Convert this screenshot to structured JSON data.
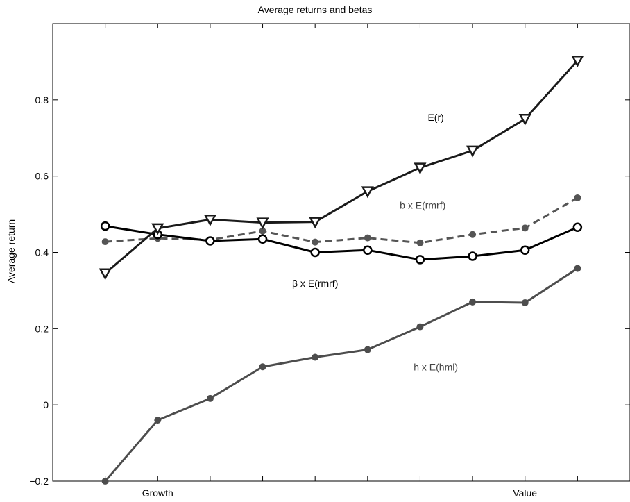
{
  "chart_data": {
    "type": "line",
    "title": "Average returns and betas",
    "xlabel": "",
    "ylabel": "Average return",
    "x": [
      1,
      2,
      3,
      4,
      5,
      6,
      7,
      8,
      9,
      10
    ],
    "xlim": [
      0,
      11
    ],
    "ylim": [
      -0.2,
      1.0
    ],
    "xticks": [
      {
        "x": 1,
        "label": ""
      },
      {
        "x": 2,
        "label": "Growth"
      },
      {
        "x": 3,
        "label": ""
      },
      {
        "x": 4,
        "label": ""
      },
      {
        "x": 5,
        "label": ""
      },
      {
        "x": 6,
        "label": ""
      },
      {
        "x": 7,
        "label": ""
      },
      {
        "x": 8,
        "label": ""
      },
      {
        "x": 9,
        "label": "Value"
      },
      {
        "x": 10,
        "label": ""
      }
    ],
    "yticks": [
      {
        "y": -0.2,
        "label": "−0.2"
      },
      {
        "y": 0,
        "label": "0"
      },
      {
        "y": 0.2,
        "label": "0.2"
      },
      {
        "y": 0.4,
        "label": "0.4"
      },
      {
        "y": 0.6,
        "label": "0.6"
      },
      {
        "y": 0.8,
        "label": "0.8"
      }
    ],
    "grid": false,
    "series": [
      {
        "key": "er",
        "name": "E(r)",
        "values": [
          0.345,
          0.463,
          0.486,
          0.478,
          0.48,
          0.56,
          0.622,
          0.667,
          0.75,
          0.903
        ],
        "color": "#1a1a1a",
        "dashed": false,
        "marker": "triangle-down",
        "label_x": 7.3,
        "label_y": 0.745
      },
      {
        "key": "b",
        "name": "b x E(rmrf)",
        "values": [
          0.428,
          0.437,
          0.433,
          0.456,
          0.427,
          0.438,
          0.425,
          0.447,
          0.464,
          0.543
        ],
        "color": "#555555",
        "dashed": true,
        "marker": "dot",
        "label_x": 7.05,
        "label_y": 0.515
      },
      {
        "key": "beta",
        "name": "β x E(rmrf)",
        "values": [
          0.469,
          0.447,
          0.43,
          0.435,
          0.4,
          0.406,
          0.381,
          0.39,
          0.406,
          0.466
        ],
        "color": "#000000",
        "dashed": false,
        "marker": "circle",
        "label_x": 5.0,
        "label_y": 0.31
      },
      {
        "key": "h",
        "name": "h x E(hml)",
        "values": [
          -0.2,
          -0.04,
          0.017,
          0.1,
          0.125,
          0.145,
          0.205,
          0.27,
          0.268,
          0.358
        ],
        "color": "#4d4d4d",
        "dashed": false,
        "marker": "dot",
        "label_x": 7.3,
        "label_y": 0.09
      }
    ]
  }
}
